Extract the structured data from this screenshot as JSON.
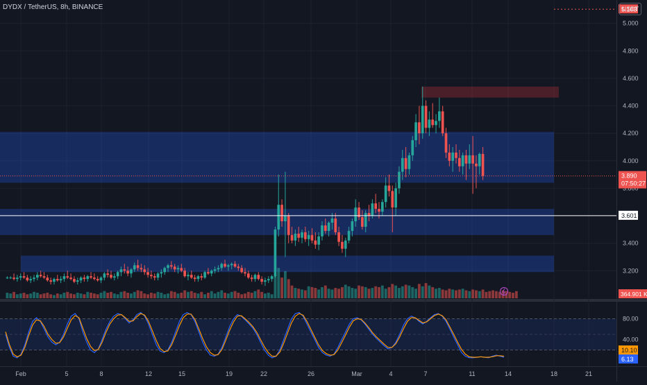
{
  "chart_title": "DYDX / TetherUS, 8h, BINANCE",
  "currency_button": "USDT",
  "colors": {
    "up": "#26a69a",
    "down": "#ef5350",
    "zone": "#2962ff",
    "stoch_k": "#2962ff",
    "stoch_d": "#ff9800",
    "supply": "#f23645"
  },
  "chart_data": [
    {
      "type": "candlestick",
      "x_ticks": [
        "Feb",
        "5",
        "8",
        "12",
        "15",
        "19",
        "22",
        "26",
        "Mar",
        "4",
        "7",
        "11",
        "14",
        "18",
        "21"
      ],
      "y_ticks": [
        "3.200",
        "3.400",
        "3.600",
        "3.800",
        "4.000",
        "4.200",
        "4.400",
        "4.600",
        "4.800",
        "5.000"
      ],
      "ylim": [
        3.05,
        5.15
      ],
      "labels": {
        "alert_price": "5.103",
        "horizontal_line": "3.601",
        "last_price": "3.890",
        "countdown": "07:50:27",
        "volume": "364.901 K"
      },
      "zones": [
        {
          "kind": "support",
          "low": 3.84,
          "high": 4.21
        },
        {
          "kind": "support",
          "low": 3.46,
          "high": 3.65
        },
        {
          "kind": "support",
          "low": 3.19,
          "high": 3.31
        },
        {
          "kind": "supply",
          "low": 4.46,
          "high": 4.54
        }
      ],
      "candles": [
        [
          3.15,
          3.16,
          3.14,
          3.15
        ],
        [
          3.15,
          3.16,
          3.14,
          3.15
        ],
        [
          3.15,
          3.18,
          3.13,
          3.14
        ],
        [
          3.14,
          3.17,
          3.12,
          3.15
        ],
        [
          3.15,
          3.18,
          3.13,
          3.16
        ],
        [
          3.16,
          3.19,
          3.14,
          3.15
        ],
        [
          3.15,
          3.17,
          3.12,
          3.13
        ],
        [
          3.13,
          3.16,
          3.11,
          3.14
        ],
        [
          3.14,
          3.17,
          3.12,
          3.15
        ],
        [
          3.15,
          3.19,
          3.13,
          3.17
        ],
        [
          3.17,
          3.2,
          3.15,
          3.16
        ],
        [
          3.16,
          3.19,
          3.14,
          3.15
        ],
        [
          3.15,
          3.17,
          3.12,
          3.13
        ],
        [
          3.13,
          3.15,
          3.1,
          3.12
        ],
        [
          3.12,
          3.15,
          3.1,
          3.14
        ],
        [
          3.14,
          3.17,
          3.12,
          3.13
        ],
        [
          3.13,
          3.16,
          3.11,
          3.14
        ],
        [
          3.14,
          3.18,
          3.12,
          3.16
        ],
        [
          3.16,
          3.2,
          3.14,
          3.15
        ],
        [
          3.15,
          3.18,
          3.13,
          3.14
        ],
        [
          3.14,
          3.16,
          3.11,
          3.12
        ],
        [
          3.12,
          3.15,
          3.1,
          3.13
        ],
        [
          3.13,
          3.16,
          3.11,
          3.15
        ],
        [
          3.15,
          3.17,
          3.12,
          3.14
        ],
        [
          3.14,
          3.17,
          3.12,
          3.16
        ],
        [
          3.16,
          3.19,
          3.14,
          3.15
        ],
        [
          3.15,
          3.18,
          3.13,
          3.14
        ],
        [
          3.14,
          3.16,
          3.12,
          3.13
        ],
        [
          3.13,
          3.16,
          3.11,
          3.15
        ],
        [
          3.15,
          3.19,
          3.13,
          3.18
        ],
        [
          3.18,
          3.21,
          3.15,
          3.17
        ],
        [
          3.17,
          3.2,
          3.14,
          3.15
        ],
        [
          3.15,
          3.18,
          3.13,
          3.16
        ],
        [
          3.16,
          3.2,
          3.14,
          3.19
        ],
        [
          3.19,
          3.23,
          3.16,
          3.21
        ],
        [
          3.21,
          3.25,
          3.18,
          3.2
        ],
        [
          3.2,
          3.23,
          3.16,
          3.18
        ],
        [
          3.18,
          3.22,
          3.15,
          3.21
        ],
        [
          3.21,
          3.26,
          3.19,
          3.24
        ],
        [
          3.24,
          3.28,
          3.2,
          3.22
        ],
        [
          3.22,
          3.25,
          3.19,
          3.21
        ],
        [
          3.21,
          3.24,
          3.17,
          3.19
        ],
        [
          3.19,
          3.22,
          3.15,
          3.17
        ],
        [
          3.17,
          3.2,
          3.14,
          3.16
        ],
        [
          3.16,
          3.18,
          3.13,
          3.15
        ],
        [
          3.15,
          3.19,
          3.13,
          3.18
        ],
        [
          3.18,
          3.21,
          3.15,
          3.19
        ],
        [
          3.19,
          3.23,
          3.17,
          3.22
        ],
        [
          3.22,
          3.25,
          3.19,
          3.24
        ],
        [
          3.24,
          3.27,
          3.21,
          3.23
        ],
        [
          3.23,
          3.25,
          3.19,
          3.21
        ],
        [
          3.21,
          3.24,
          3.18,
          3.22
        ],
        [
          3.22,
          3.25,
          3.19,
          3.2
        ],
        [
          3.2,
          3.22,
          3.15,
          3.16
        ],
        [
          3.16,
          3.19,
          3.13,
          3.17
        ],
        [
          3.17,
          3.2,
          3.14,
          3.15
        ],
        [
          3.15,
          3.17,
          3.12,
          3.14
        ],
        [
          3.14,
          3.17,
          3.12,
          3.16
        ],
        [
          3.16,
          3.18,
          3.13,
          3.15
        ],
        [
          3.15,
          3.2,
          3.14,
          3.19
        ],
        [
          3.19,
          3.22,
          3.17,
          3.18
        ],
        [
          3.18,
          3.21,
          3.16,
          3.2
        ],
        [
          3.2,
          3.23,
          3.18,
          3.21
        ],
        [
          3.21,
          3.24,
          3.19,
          3.22
        ],
        [
          3.22,
          3.26,
          3.2,
          3.25
        ],
        [
          3.25,
          3.28,
          3.22,
          3.23
        ],
        [
          3.23,
          3.25,
          3.2,
          3.24
        ],
        [
          3.24,
          3.26,
          3.21,
          3.25
        ],
        [
          3.25,
          3.27,
          3.22,
          3.23
        ],
        [
          3.23,
          3.25,
          3.2,
          3.22
        ],
        [
          3.22,
          3.24,
          3.18,
          3.19
        ],
        [
          3.19,
          3.22,
          3.16,
          3.18
        ],
        [
          3.18,
          3.2,
          3.14,
          3.15
        ],
        [
          3.15,
          3.17,
          3.12,
          3.14
        ],
        [
          3.14,
          3.18,
          3.12,
          3.17
        ],
        [
          3.17,
          3.19,
          3.13,
          3.14
        ],
        [
          3.14,
          3.16,
          3.1,
          3.12
        ],
        [
          3.12,
          3.15,
          3.09,
          3.13
        ],
        [
          3.13,
          3.16,
          3.11,
          3.14
        ],
        [
          3.14,
          3.17,
          3.12,
          3.16
        ],
        [
          3.16,
          3.52,
          3.15,
          3.5
        ],
        [
          3.5,
          3.9,
          3.45,
          3.68
        ],
        [
          3.68,
          3.72,
          3.52,
          3.56
        ],
        [
          3.56,
          3.92,
          3.3,
          3.6
        ],
        [
          3.6,
          3.62,
          3.4,
          3.46
        ],
        [
          3.46,
          3.52,
          3.4,
          3.42
        ],
        [
          3.42,
          3.5,
          3.38,
          3.47
        ],
        [
          3.47,
          3.52,
          3.41,
          3.44
        ],
        [
          3.44,
          3.5,
          3.4,
          3.48
        ],
        [
          3.48,
          3.52,
          3.41,
          3.43
        ],
        [
          3.43,
          3.49,
          3.38,
          3.46
        ],
        [
          3.46,
          3.51,
          3.4,
          3.42
        ],
        [
          3.42,
          3.48,
          3.36,
          3.39
        ],
        [
          3.39,
          3.48,
          3.35,
          3.45
        ],
        [
          3.45,
          3.56,
          3.42,
          3.53
        ],
        [
          3.53,
          3.58,
          3.47,
          3.49
        ],
        [
          3.49,
          3.56,
          3.45,
          3.55
        ],
        [
          3.55,
          3.62,
          3.5,
          3.58
        ],
        [
          3.58,
          3.62,
          3.46,
          3.48
        ],
        [
          3.48,
          3.52,
          3.38,
          3.41
        ],
        [
          3.41,
          3.46,
          3.33,
          3.36
        ],
        [
          3.36,
          3.44,
          3.3,
          3.42
        ],
        [
          3.42,
          3.52,
          3.4,
          3.49
        ],
        [
          3.49,
          3.58,
          3.45,
          3.56
        ],
        [
          3.56,
          3.72,
          3.52,
          3.66
        ],
        [
          3.66,
          3.7,
          3.57,
          3.59
        ],
        [
          3.59,
          3.64,
          3.5,
          3.52
        ],
        [
          3.52,
          3.64,
          3.48,
          3.62
        ],
        [
          3.62,
          3.68,
          3.56,
          3.6
        ],
        [
          3.6,
          3.72,
          3.58,
          3.69
        ],
        [
          3.69,
          3.76,
          3.62,
          3.65
        ],
        [
          3.65,
          3.7,
          3.58,
          3.63
        ],
        [
          3.63,
          3.72,
          3.6,
          3.7
        ],
        [
          3.7,
          3.88,
          3.66,
          3.82
        ],
        [
          3.82,
          3.9,
          3.74,
          3.78
        ],
        [
          3.78,
          3.82,
          3.48,
          3.66
        ],
        [
          3.66,
          3.84,
          3.6,
          3.8
        ],
        [
          3.8,
          3.96,
          3.76,
          3.92
        ],
        [
          3.92,
          4.08,
          3.86,
          4.02
        ],
        [
          4.02,
          4.1,
          3.88,
          3.94
        ],
        [
          3.94,
          4.06,
          3.9,
          4.04
        ],
        [
          4.04,
          4.18,
          4.0,
          4.15
        ],
        [
          4.15,
          4.34,
          4.1,
          4.28
        ],
        [
          4.28,
          4.4,
          4.12,
          4.2
        ],
        [
          4.2,
          4.54,
          4.16,
          4.4
        ],
        [
          4.4,
          4.44,
          4.2,
          4.24
        ],
        [
          4.24,
          4.36,
          4.18,
          4.3
        ],
        [
          4.3,
          4.42,
          4.24,
          4.26
        ],
        [
          4.26,
          4.34,
          4.2,
          4.29
        ],
        [
          4.29,
          4.46,
          4.24,
          4.36
        ],
        [
          4.36,
          4.4,
          4.18,
          4.2
        ],
        [
          4.2,
          4.24,
          4.02,
          4.06
        ],
        [
          4.06,
          4.12,
          3.96,
          4.0
        ],
        [
          4.0,
          4.1,
          3.92,
          4.06
        ],
        [
          4.06,
          4.12,
          3.98,
          4.02
        ],
        [
          4.02,
          4.08,
          3.92,
          3.96
        ],
        [
          3.96,
          4.06,
          3.9,
          4.04
        ],
        [
          4.04,
          4.08,
          3.86,
          3.98
        ],
        [
          3.98,
          4.12,
          3.94,
          4.04
        ],
        [
          4.04,
          4.18,
          3.76,
          3.98
        ],
        [
          3.98,
          4.04,
          3.8,
          3.96
        ],
        [
          3.96,
          4.06,
          3.9,
          4.05
        ],
        [
          4.05,
          4.1,
          3.86,
          3.89
        ]
      ],
      "volumes": [
        7,
        6,
        8,
        5,
        6,
        7,
        5,
        6,
        8,
        7,
        5,
        6,
        7,
        5,
        4,
        6,
        5,
        7,
        8,
        6,
        5,
        7,
        6,
        5,
        8,
        7,
        6,
        5,
        7,
        9,
        7,
        8,
        6,
        5,
        8,
        9,
        7,
        6,
        8,
        10,
        9,
        6,
        5,
        7,
        6,
        8,
        7,
        5,
        6,
        9,
        8,
        6,
        7,
        10,
        8,
        9,
        7,
        6,
        8,
        5,
        7,
        9,
        6,
        8,
        10,
        7,
        6,
        8,
        9,
        7,
        5,
        6,
        8,
        7,
        9,
        11,
        8,
        6,
        7,
        5,
        30,
        38,
        26,
        34,
        24,
        16,
        13,
        12,
        11,
        10,
        15,
        14,
        13,
        11,
        14,
        16,
        12,
        11,
        13,
        12,
        14,
        17,
        15,
        13,
        12,
        16,
        15,
        14,
        12,
        13,
        15,
        14,
        16,
        12,
        14,
        18,
        16,
        13,
        15,
        17,
        16,
        14,
        12,
        18,
        15,
        19,
        16,
        14,
        12,
        13,
        11,
        10,
        12,
        11,
        10,
        11,
        12,
        10,
        9,
        11,
        10,
        9,
        11,
        8,
        9,
        10,
        9,
        8,
        10,
        9,
        8,
        7,
        9
      ]
    },
    {
      "type": "line",
      "name": "stochastic",
      "y_ticks": [
        "40.00",
        "80.00"
      ],
      "ylim": [
        -10,
        110
      ],
      "labels": {
        "d_value": "10.10",
        "k_value": "6.13"
      },
      "series": [
        {
          "values": [
            50,
            25,
            8,
            5,
            12,
            30,
            55,
            75,
            82,
            75,
            60,
            45,
            35,
            30,
            35,
            50,
            70,
            85,
            90,
            80,
            55,
            35,
            20,
            15,
            22,
            40,
            60,
            75,
            85,
            90,
            88,
            80,
            72,
            78,
            88,
            92,
            85,
            70,
            50,
            30,
            18,
            15,
            20,
            35,
            55,
            75,
            88,
            92,
            88,
            75,
            55,
            35,
            20,
            10,
            8,
            12,
            25,
            45,
            65,
            80,
            88,
            85,
            78,
            70,
            62,
            50,
            35,
            20,
            10,
            5,
            8,
            20,
            40,
            60,
            80,
            90,
            92,
            85,
            70,
            55,
            40,
            25,
            15,
            10,
            8,
            12,
            25,
            40,
            55,
            70,
            80,
            82,
            78,
            70,
            60,
            50,
            42,
            35,
            28,
            22,
            25,
            35,
            50,
            68,
            80,
            85,
            82,
            75,
            70,
            75,
            82,
            88,
            90,
            85,
            75,
            60,
            45,
            30,
            15,
            8,
            5,
            5,
            6,
            7,
            6,
            5,
            8,
            10,
            8,
            6
          ]
        },
        {
          "values": [
            55,
            30,
            12,
            7,
            10,
            25,
            48,
            68,
            78,
            76,
            65,
            50,
            40,
            33,
            34,
            45,
            62,
            78,
            86,
            82,
            62,
            42,
            27,
            19,
            21,
            35,
            54,
            70,
            80,
            87,
            88,
            82,
            75,
            76,
            84,
            90,
            87,
            75,
            57,
            38,
            23,
            17,
            18,
            30,
            48,
            67,
            82,
            89,
            89,
            79,
            61,
            42,
            26,
            15,
            10,
            11,
            21,
            39,
            58,
            74,
            85,
            86,
            80,
            73,
            65,
            54,
            40,
            26,
            15,
            8,
            8,
            16,
            33,
            53,
            72,
            85,
            90,
            87,
            75,
            60,
            45,
            30,
            19,
            13,
            10,
            11,
            20,
            34,
            49,
            64,
            76,
            80,
            79,
            72,
            63,
            53,
            45,
            38,
            31,
            25,
            25,
            32,
            45,
            61,
            75,
            82,
            82,
            77,
            72,
            74,
            80,
            86,
            89,
            86,
            78,
            64,
            50,
            35,
            21,
            12,
            7,
            6,
            6,
            7,
            6,
            6,
            7,
            9,
            9,
            8
          ]
        }
      ]
    }
  ]
}
